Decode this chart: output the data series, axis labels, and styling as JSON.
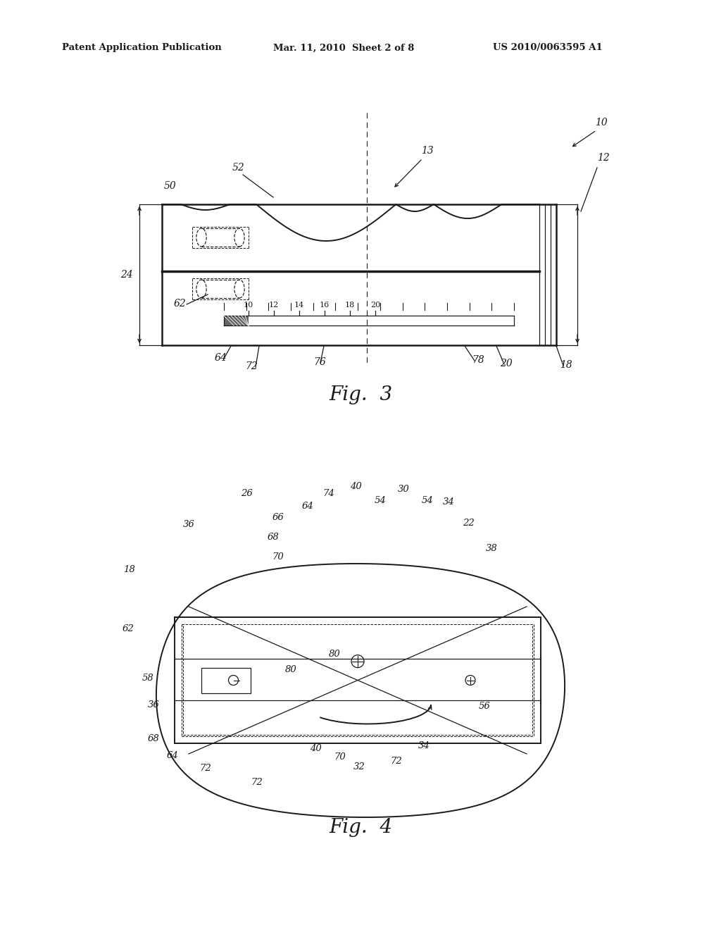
{
  "bg_color": "#ffffff",
  "header_left": "Patent Application Publication",
  "header_mid": "Mar. 11, 2010  Sheet 2 of 8",
  "header_right": "US 2010/0063595 A1",
  "fig3_label": "Fig.  3",
  "fig4_label": "Fig.  4",
  "gray": "#1a1a1a"
}
